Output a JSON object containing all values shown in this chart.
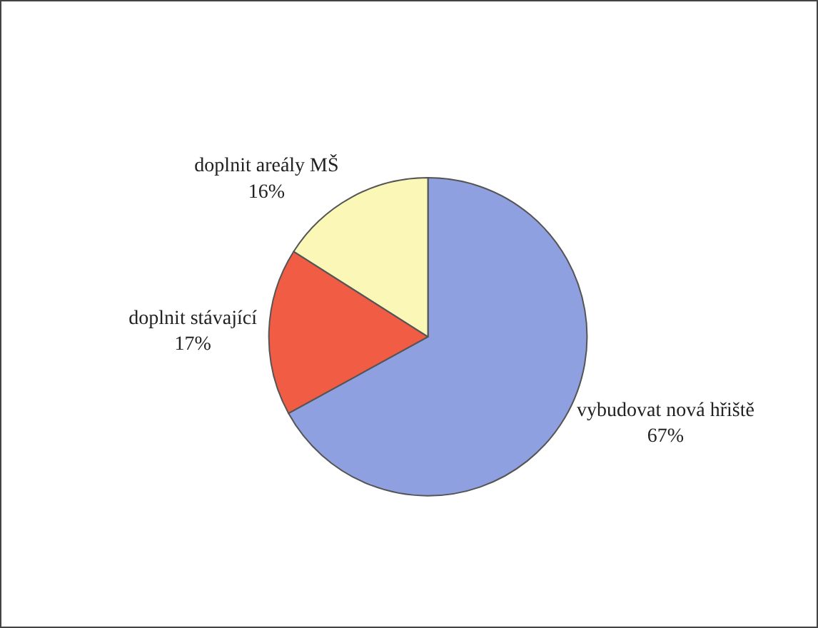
{
  "chart_data": {
    "type": "pie",
    "categories": [
      "vybudovat nová hřiště",
      "doplnit stávající",
      "doplnit areály MŠ"
    ],
    "values": [
      67,
      17,
      16
    ],
    "value_labels": [
      "67%",
      "17%",
      "16%"
    ],
    "colors": [
      "#8fa0e0",
      "#f05c44",
      "#fbf7b6"
    ],
    "legend": false
  }
}
